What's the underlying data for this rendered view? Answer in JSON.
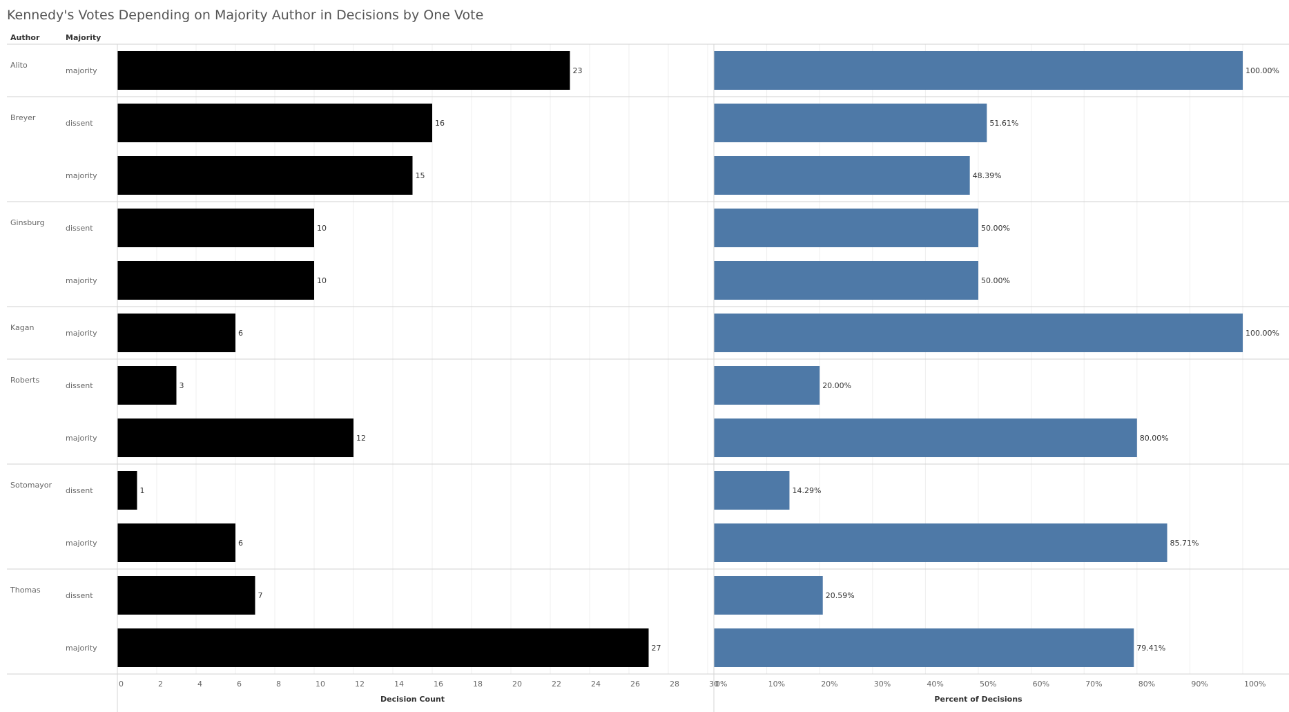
{
  "chart_data": {
    "type": "bar",
    "title": "Kennedy's Votes Depending on Majority Author in Decisions by One Vote",
    "header_labels": {
      "author": "Author",
      "majority": "Majority"
    },
    "rows": [
      {
        "author": "Alito",
        "majority": "majority",
        "count": 23,
        "count_label": "23",
        "percent": 100.0,
        "percent_label": "100.00%"
      },
      {
        "author": "Breyer",
        "majority": "dissent",
        "count": 16,
        "count_label": "16",
        "percent": 51.61,
        "percent_label": "51.61%"
      },
      {
        "author": "",
        "majority": "majority",
        "count": 15,
        "count_label": "15",
        "percent": 48.39,
        "percent_label": "48.39%"
      },
      {
        "author": "Ginsburg",
        "majority": "dissent",
        "count": 10,
        "count_label": "10",
        "percent": 50.0,
        "percent_label": "50.00%"
      },
      {
        "author": "",
        "majority": "majority",
        "count": 10,
        "count_label": "10",
        "percent": 50.0,
        "percent_label": "50.00%"
      },
      {
        "author": "Kagan",
        "majority": "majority",
        "count": 6,
        "count_label": "6",
        "percent": 100.0,
        "percent_label": "100.00%"
      },
      {
        "author": "Roberts",
        "majority": "dissent",
        "count": 3,
        "count_label": "3",
        "percent": 20.0,
        "percent_label": "20.00%"
      },
      {
        "author": "",
        "majority": "majority",
        "count": 12,
        "count_label": "12",
        "percent": 80.0,
        "percent_label": "80.00%"
      },
      {
        "author": "Sotomayor",
        "majority": "dissent",
        "count": 1,
        "count_label": "1",
        "percent": 14.29,
        "percent_label": "14.29%"
      },
      {
        "author": "",
        "majority": "majority",
        "count": 6,
        "count_label": "6",
        "percent": 85.71,
        "percent_label": "85.71%"
      },
      {
        "author": "Thomas",
        "majority": "dissent",
        "count": 7,
        "count_label": "7",
        "percent": 20.59,
        "percent_label": "20.59%"
      },
      {
        "author": "",
        "majority": "majority",
        "count": 27,
        "count_label": "27",
        "percent": 79.41,
        "percent_label": "79.41%"
      }
    ],
    "group_sizes": [
      1,
      2,
      2,
      1,
      2,
      2,
      2
    ],
    "panels": [
      {
        "xlabel": "Decision Count",
        "xlim": [
          0,
          30
        ],
        "ticks": [
          0,
          2,
          4,
          6,
          8,
          10,
          12,
          14,
          16,
          18,
          20,
          22,
          24,
          26,
          28,
          30
        ],
        "tick_labels": [
          "0",
          "2",
          "4",
          "6",
          "8",
          "10",
          "12",
          "14",
          "16",
          "18",
          "20",
          "22",
          "24",
          "26",
          "28",
          "30"
        ],
        "color": "#000000"
      },
      {
        "xlabel": "Percent of Decisions",
        "xlim": [
          0,
          100
        ],
        "ticks": [
          0,
          10,
          20,
          30,
          40,
          50,
          60,
          70,
          80,
          90,
          100
        ],
        "tick_labels": [
          "0%",
          "10%",
          "20%",
          "30%",
          "40%",
          "50%",
          "60%",
          "70%",
          "80%",
          "90%",
          "100%"
        ],
        "color": "#4e79a7"
      }
    ],
    "grid": true
  }
}
